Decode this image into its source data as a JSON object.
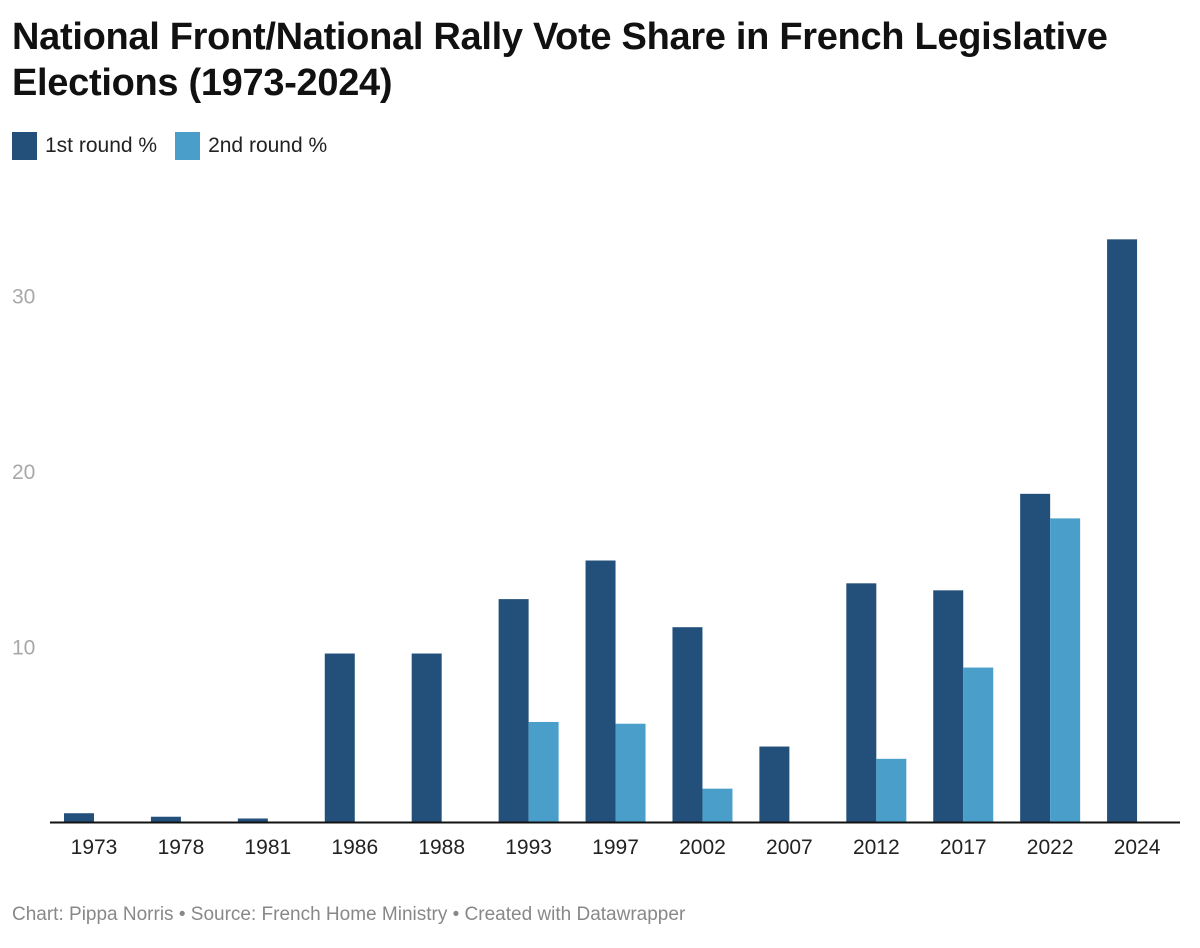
{
  "chart_data": {
    "type": "bar",
    "title": "National Front/National Rally Vote Share in French Legislative Elections (1973-2024)",
    "xlabel": "",
    "ylabel": "",
    "categories": [
      "1973",
      "1978",
      "1981",
      "1986",
      "1988",
      "1993",
      "1997",
      "2002",
      "2007",
      "2012",
      "2017",
      "2022",
      "2024"
    ],
    "series": [
      {
        "name": "1st round %",
        "color": "#22507a",
        "values": [
          0.5,
          0.3,
          0.2,
          9.6,
          9.6,
          12.7,
          14.9,
          11.1,
          4.3,
          13.6,
          13.2,
          18.7,
          33.2
        ]
      },
      {
        "name": "2nd round %",
        "color": "#4a9fca",
        "values": [
          null,
          null,
          null,
          null,
          null,
          5.7,
          5.6,
          1.9,
          null,
          3.6,
          8.8,
          17.3,
          null
        ]
      }
    ],
    "yticks": [
      10,
      20,
      30
    ],
    "ylim": [
      0,
      35
    ],
    "grid": false,
    "legend_position": "top-left"
  },
  "footer": "Chart: Pippa Norris • Source: French Home Ministry • Created with Datawrapper"
}
